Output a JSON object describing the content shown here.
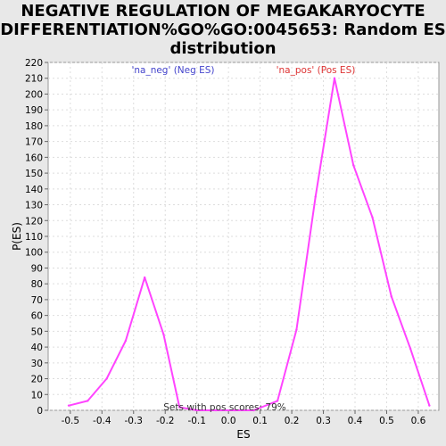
{
  "chart_data": {
    "type": "line",
    "title_lines": [
      "NEGATIVE REGULATION OF MEGAKARYOCYTE",
      "DIFFERENTIATION%GO%GO:0045653: Random ES",
      "distribution"
    ],
    "xlabel": "ES",
    "ylabel": "P(ES)",
    "xlim": [
      -0.57,
      0.665
    ],
    "ylim": [
      0,
      220
    ],
    "xticks": [
      "-0.5",
      "-0.4",
      "-0.3",
      "-0.2",
      "-0.1",
      "0.0",
      "0.1",
      "0.2",
      "0.3",
      "0.4",
      "0.5",
      "0.6"
    ],
    "xtick_values": [
      -0.5,
      -0.4,
      -0.3,
      -0.2,
      -0.1,
      0.0,
      0.1,
      0.2,
      0.3,
      0.4,
      0.5,
      0.6
    ],
    "yticks": [
      0,
      10,
      20,
      30,
      40,
      50,
      60,
      70,
      80,
      90,
      100,
      110,
      120,
      130,
      140,
      150,
      160,
      170,
      180,
      190,
      200,
      210,
      220
    ],
    "grid": true,
    "series": [
      {
        "color": "#ff44ff",
        "x": [
          -0.505,
          -0.445,
          -0.385,
          -0.325,
          -0.265,
          -0.205,
          -0.155,
          -0.1,
          -0.04,
          0.02,
          0.08,
          0.155,
          0.215,
          0.275,
          0.335,
          0.395,
          0.455,
          0.515,
          0.575,
          0.635
        ],
        "y": [
          3,
          6,
          20,
          44,
          84,
          48,
          2,
          0,
          0,
          0,
          0,
          6,
          51,
          135,
          210,
          155,
          122,
          72,
          39,
          3
        ]
      }
    ],
    "annotations": {
      "neg_label": "'na_neg' (Neg ES)",
      "neg_color": "#4444cc",
      "pos_label": "'na_pos' (Pos ES)",
      "pos_color": "#dd3333",
      "footer": "Sets with pos scores: 79%"
    }
  }
}
